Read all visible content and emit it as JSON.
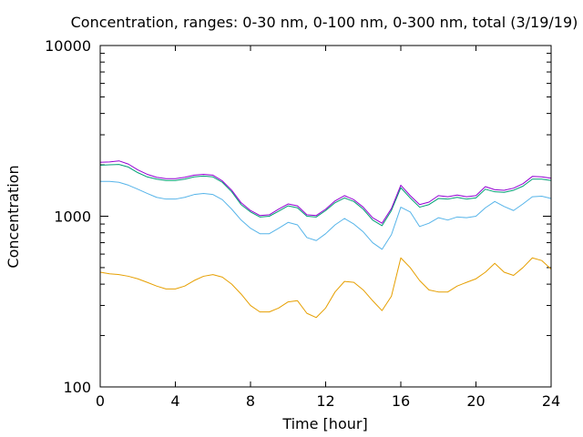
{
  "chart_data": {
    "type": "line",
    "title": "Concentration, ranges: 0-30 nm, 0-100 nm, 0-300 nm, total (3/19/19)",
    "xlabel": "Time [hour]",
    "ylabel": "Concentration",
    "xlim": [
      0,
      24
    ],
    "ylim": [
      100,
      10000
    ],
    "yscale": "log",
    "grid": false,
    "legend": "none",
    "x_ticks": [
      0,
      4,
      8,
      12,
      16,
      20,
      24
    ],
    "x_tick_labels": [
      "0",
      "4",
      "8",
      "12",
      "16",
      "20",
      "24"
    ],
    "y_ticks": [
      100,
      1000,
      10000
    ],
    "y_tick_labels": [
      "100",
      "1000",
      "10000"
    ],
    "x": [
      0,
      0.5,
      1,
      1.5,
      2,
      2.5,
      3,
      3.5,
      4,
      4.5,
      5,
      5.5,
      6,
      6.5,
      7,
      7.5,
      8,
      8.5,
      9,
      9.5,
      10,
      10.5,
      11,
      11.5,
      12,
      12.5,
      13,
      13.5,
      14,
      14.5,
      15,
      15.5,
      16,
      16.5,
      17,
      17.5,
      18,
      18.5,
      19,
      19.5,
      20,
      20.5,
      21,
      21.5,
      22,
      22.5,
      23,
      23.5,
      24
    ],
    "series": [
      {
        "color": "#e69f00",
        "values": [
          470,
          460,
          455,
          445,
          430,
          410,
          390,
          375,
          375,
          390,
          420,
          445,
          455,
          440,
          400,
          350,
          300,
          275,
          275,
          290,
          315,
          320,
          270,
          255,
          290,
          360,
          415,
          410,
          370,
          320,
          280,
          340,
          570,
          500,
          420,
          370,
          360,
          360,
          390,
          410,
          430,
          470,
          530,
          470,
          450,
          500,
          570,
          550,
          490
        ]
      },
      {
        "color": "#56b4e9",
        "values": [
          1600,
          1600,
          1580,
          1520,
          1440,
          1360,
          1290,
          1260,
          1260,
          1290,
          1340,
          1360,
          1340,
          1250,
          1100,
          950,
          850,
          790,
          790,
          850,
          920,
          890,
          750,
          720,
          790,
          890,
          970,
          900,
          810,
          700,
          640,
          780,
          1130,
          1060,
          870,
          910,
          980,
          950,
          990,
          980,
          1000,
          1120,
          1220,
          1140,
          1080,
          1180,
          1300,
          1310,
          1270
        ]
      },
      {
        "color": "#009e73",
        "values": [
          1990,
          2000,
          2010,
          1940,
          1800,
          1700,
          1650,
          1620,
          1620,
          1650,
          1700,
          1720,
          1700,
          1580,
          1390,
          1170,
          1060,
          990,
          1000,
          1070,
          1150,
          1120,
          1000,
          990,
          1080,
          1200,
          1280,
          1220,
          1100,
          950,
          880,
          1080,
          1470,
          1280,
          1130,
          1170,
          1270,
          1260,
          1290,
          1260,
          1280,
          1440,
          1390,
          1380,
          1420,
          1500,
          1650,
          1650,
          1620
        ]
      },
      {
        "color": "#9400d3",
        "values": [
          2070,
          2080,
          2110,
          2020,
          1870,
          1760,
          1690,
          1660,
          1660,
          1690,
          1740,
          1760,
          1740,
          1610,
          1420,
          1200,
          1080,
          1010,
          1020,
          1100,
          1180,
          1150,
          1020,
          1010,
          1100,
          1230,
          1320,
          1250,
          1130,
          980,
          910,
          1110,
          1520,
          1320,
          1170,
          1210,
          1320,
          1300,
          1330,
          1300,
          1320,
          1490,
          1430,
          1420,
          1460,
          1550,
          1710,
          1700,
          1670
        ]
      }
    ]
  }
}
